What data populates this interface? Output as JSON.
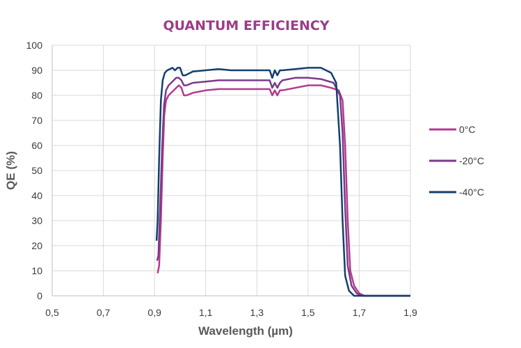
{
  "chart_data": {
    "type": "line",
    "title": "QUANTUM EFFICIENCY",
    "xlabel": "Wavelength (µm)",
    "ylabel": "QE (%)",
    "xlim": [
      0.5,
      1.9
    ],
    "ylim": [
      0,
      100
    ],
    "x_ticks": [
      "0,5",
      "0,7",
      "0,9",
      "1,1",
      "1,3",
      "1,5",
      "1,7",
      "1,9"
    ],
    "y_ticks": [
      "0",
      "10",
      "20",
      "30",
      "40",
      "50",
      "60",
      "70",
      "80",
      "90",
      "100"
    ],
    "grid": true,
    "legend": "right",
    "colors": {
      "title": "#9b3d86",
      "axis_text": "#595959",
      "grid": "#d9d9d9"
    },
    "series": [
      {
        "name": "0°C",
        "color": "#b53a8e",
        "points": [
          [
            0.912,
            9
          ],
          [
            0.918,
            12
          ],
          [
            0.925,
            30
          ],
          [
            0.932,
            55
          ],
          [
            0.938,
            72
          ],
          [
            0.945,
            78
          ],
          [
            0.955,
            80
          ],
          [
            0.965,
            81
          ],
          [
            0.975,
            82
          ],
          [
            0.985,
            83
          ],
          [
            0.995,
            84
          ],
          [
            1.005,
            83
          ],
          [
            1.015,
            80
          ],
          [
            1.025,
            80
          ],
          [
            1.05,
            81
          ],
          [
            1.1,
            82
          ],
          [
            1.15,
            82.5
          ],
          [
            1.2,
            82.5
          ],
          [
            1.25,
            82.5
          ],
          [
            1.3,
            82.5
          ],
          [
            1.35,
            82.5
          ],
          [
            1.36,
            80
          ],
          [
            1.37,
            82
          ],
          [
            1.38,
            80
          ],
          [
            1.39,
            82
          ],
          [
            1.4,
            82
          ],
          [
            1.45,
            83
          ],
          [
            1.5,
            84
          ],
          [
            1.55,
            84
          ],
          [
            1.59,
            83
          ],
          [
            1.62,
            82
          ],
          [
            1.635,
            78
          ],
          [
            1.645,
            60
          ],
          [
            1.655,
            30
          ],
          [
            1.665,
            10
          ],
          [
            1.68,
            4
          ],
          [
            1.7,
            1
          ],
          [
            1.72,
            0
          ],
          [
            1.9,
            0
          ]
        ]
      },
      {
        "name": "-20°C",
        "color": "#7a3a8a",
        "points": [
          [
            0.91,
            14
          ],
          [
            0.915,
            16
          ],
          [
            0.922,
            35
          ],
          [
            0.93,
            60
          ],
          [
            0.937,
            76
          ],
          [
            0.945,
            82
          ],
          [
            0.955,
            84
          ],
          [
            0.965,
            85
          ],
          [
            0.975,
            86
          ],
          [
            0.985,
            87
          ],
          [
            0.995,
            87
          ],
          [
            1.005,
            86
          ],
          [
            1.015,
            84
          ],
          [
            1.025,
            84
          ],
          [
            1.05,
            85
          ],
          [
            1.1,
            85.5
          ],
          [
            1.15,
            86
          ],
          [
            1.2,
            86
          ],
          [
            1.25,
            86
          ],
          [
            1.3,
            86
          ],
          [
            1.35,
            86
          ],
          [
            1.36,
            83
          ],
          [
            1.37,
            85
          ],
          [
            1.38,
            83
          ],
          [
            1.39,
            85
          ],
          [
            1.4,
            86
          ],
          [
            1.45,
            87
          ],
          [
            1.5,
            87
          ],
          [
            1.55,
            86.5
          ],
          [
            1.6,
            85
          ],
          [
            1.625,
            80
          ],
          [
            1.635,
            65
          ],
          [
            1.645,
            35
          ],
          [
            1.655,
            12
          ],
          [
            1.67,
            4
          ],
          [
            1.69,
            1
          ],
          [
            1.71,
            0
          ],
          [
            1.9,
            0
          ]
        ]
      },
      {
        "name": "-40°C",
        "color": "#123f6e",
        "points": [
          [
            0.908,
            22
          ],
          [
            0.912,
            30
          ],
          [
            0.918,
            55
          ],
          [
            0.925,
            78
          ],
          [
            0.932,
            86
          ],
          [
            0.94,
            89
          ],
          [
            0.95,
            90
          ],
          [
            0.96,
            90.5
          ],
          [
            0.97,
            91
          ],
          [
            0.98,
            90
          ],
          [
            0.99,
            91
          ],
          [
            1.0,
            91
          ],
          [
            1.01,
            88
          ],
          [
            1.02,
            88
          ],
          [
            1.05,
            89.5
          ],
          [
            1.1,
            90
          ],
          [
            1.15,
            90.5
          ],
          [
            1.2,
            90
          ],
          [
            1.25,
            90
          ],
          [
            1.3,
            90
          ],
          [
            1.35,
            90
          ],
          [
            1.36,
            87
          ],
          [
            1.37,
            90
          ],
          [
            1.38,
            88
          ],
          [
            1.39,
            90
          ],
          [
            1.4,
            90
          ],
          [
            1.45,
            90.5
          ],
          [
            1.5,
            91
          ],
          [
            1.55,
            91
          ],
          [
            1.59,
            89
          ],
          [
            1.61,
            85
          ],
          [
            1.625,
            60
          ],
          [
            1.635,
            30
          ],
          [
            1.645,
            8
          ],
          [
            1.66,
            2
          ],
          [
            1.68,
            0
          ],
          [
            1.9,
            0
          ]
        ]
      }
    ]
  }
}
